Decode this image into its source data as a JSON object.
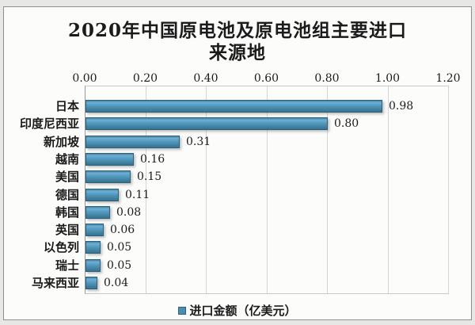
{
  "chart": {
    "title_line1": "2020年中国原电池及原电池组主要进口",
    "title_line2": "来源地",
    "legend": {
      "label": "进口金额（亿美元）",
      "marker_color": "#4a8db0"
    },
    "colors": {
      "bar_fill": "#4a8db0",
      "bar_border": "#2c607f",
      "page_background": "#e7e7e5",
      "plot_background": "#fcfcfb",
      "gridline": "#d5d5d3",
      "text": "#1b1b1b"
    }
  },
  "chart_data": {
    "type": "bar",
    "orientation": "horizontal",
    "title": "2020年中国原电池及原电池组主要进口来源地",
    "categories": [
      "日本",
      "印度尼西亚",
      "新加坡",
      "越南",
      "美国",
      "德国",
      "韩国",
      "英国",
      "以色列",
      "瑞士",
      "马来西亚"
    ],
    "series": [
      {
        "name": "进口金额（亿美元）",
        "values": [
          0.98,
          0.8,
          0.31,
          0.16,
          0.15,
          0.11,
          0.08,
          0.06,
          0.05,
          0.05,
          0.04
        ],
        "value_labels": [
          "0.98",
          "0.80",
          "0.31",
          "0.16",
          "0.15",
          "0.11",
          "0.08",
          "0.06",
          "0.05",
          "0.05",
          "0.04"
        ]
      }
    ],
    "xlabel": "",
    "ylabel": "",
    "xlim": [
      0.0,
      1.2
    ],
    "xtick_labels": [
      "0.00",
      "0.20",
      "0.40",
      "0.60",
      "0.80",
      "1.00",
      "1.20"
    ],
    "xtick_values": [
      0.0,
      0.2,
      0.4,
      0.6,
      0.8,
      1.0,
      1.2
    ],
    "value_axis_position": "top",
    "grid": "vertical",
    "data_labels": "outside-end",
    "legend_position": "bottom"
  }
}
